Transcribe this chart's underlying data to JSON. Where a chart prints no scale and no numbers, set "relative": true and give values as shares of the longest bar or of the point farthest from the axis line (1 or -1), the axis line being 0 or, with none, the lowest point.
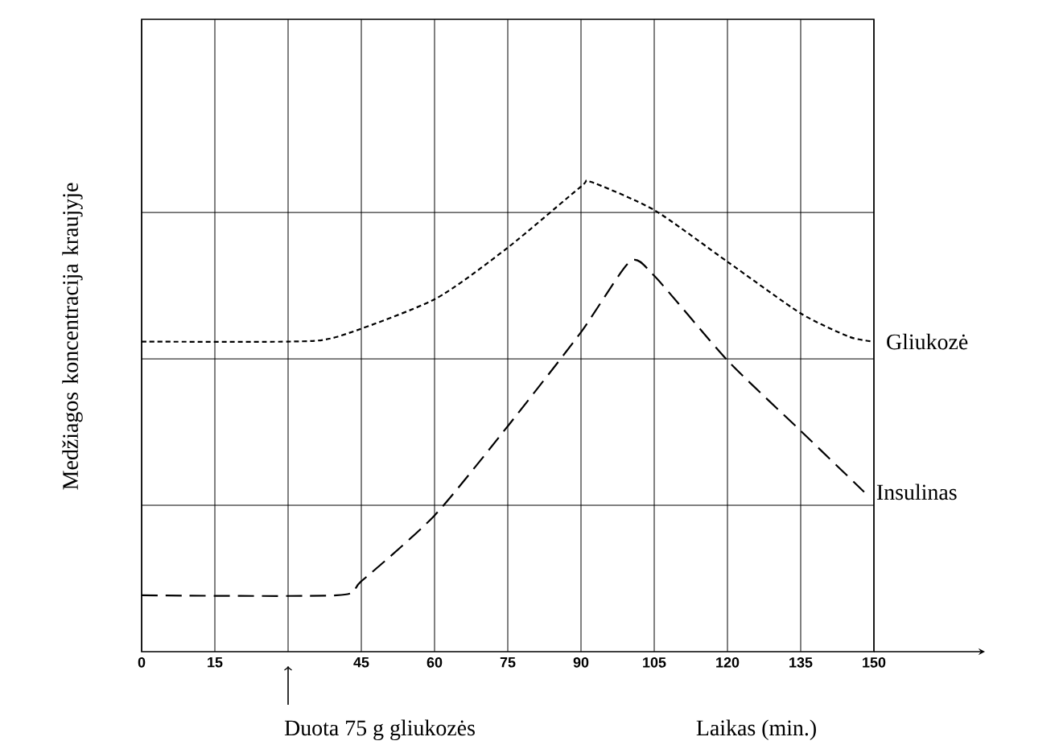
{
  "chart_data": {
    "type": "line",
    "relative": true,
    "xlabel": "Laikas (min.)",
    "ylabel": "Medžiagos koncentracija kraujyje",
    "xlim": [
      0,
      150
    ],
    "xticks": [
      0,
      15,
      {
        "value": 30,
        "label": null
      },
      45,
      60,
      75,
      90,
      105,
      120,
      135,
      150
    ],
    "grid": true,
    "legend": false,
    "marker": "none",
    "annotations": [
      "Duota 75 g gliukozės"
    ],
    "series": [
      {
        "name": "Gliukozė",
        "color": "#000000",
        "line_style": "dotted",
        "x": [
          0,
          30,
          40,
          60,
          75,
          90,
          92,
          105,
          120,
          135,
          145,
          150
        ],
        "values": [
          0.66,
          0.66,
          0.67,
          0.75,
          0.86,
          0.99,
          1.0,
          0.94,
          0.83,
          0.72,
          0.67,
          0.66
        ]
      },
      {
        "name": "Insulinas",
        "color": "#000000",
        "line_style": "dashed",
        "x": [
          0,
          40,
          45,
          60,
          75,
          90,
          100,
          105,
          120,
          135,
          148
        ],
        "values": [
          0.12,
          0.12,
          0.15,
          0.29,
          0.48,
          0.68,
          0.83,
          0.8,
          0.62,
          0.47,
          0.34
        ]
      }
    ]
  }
}
